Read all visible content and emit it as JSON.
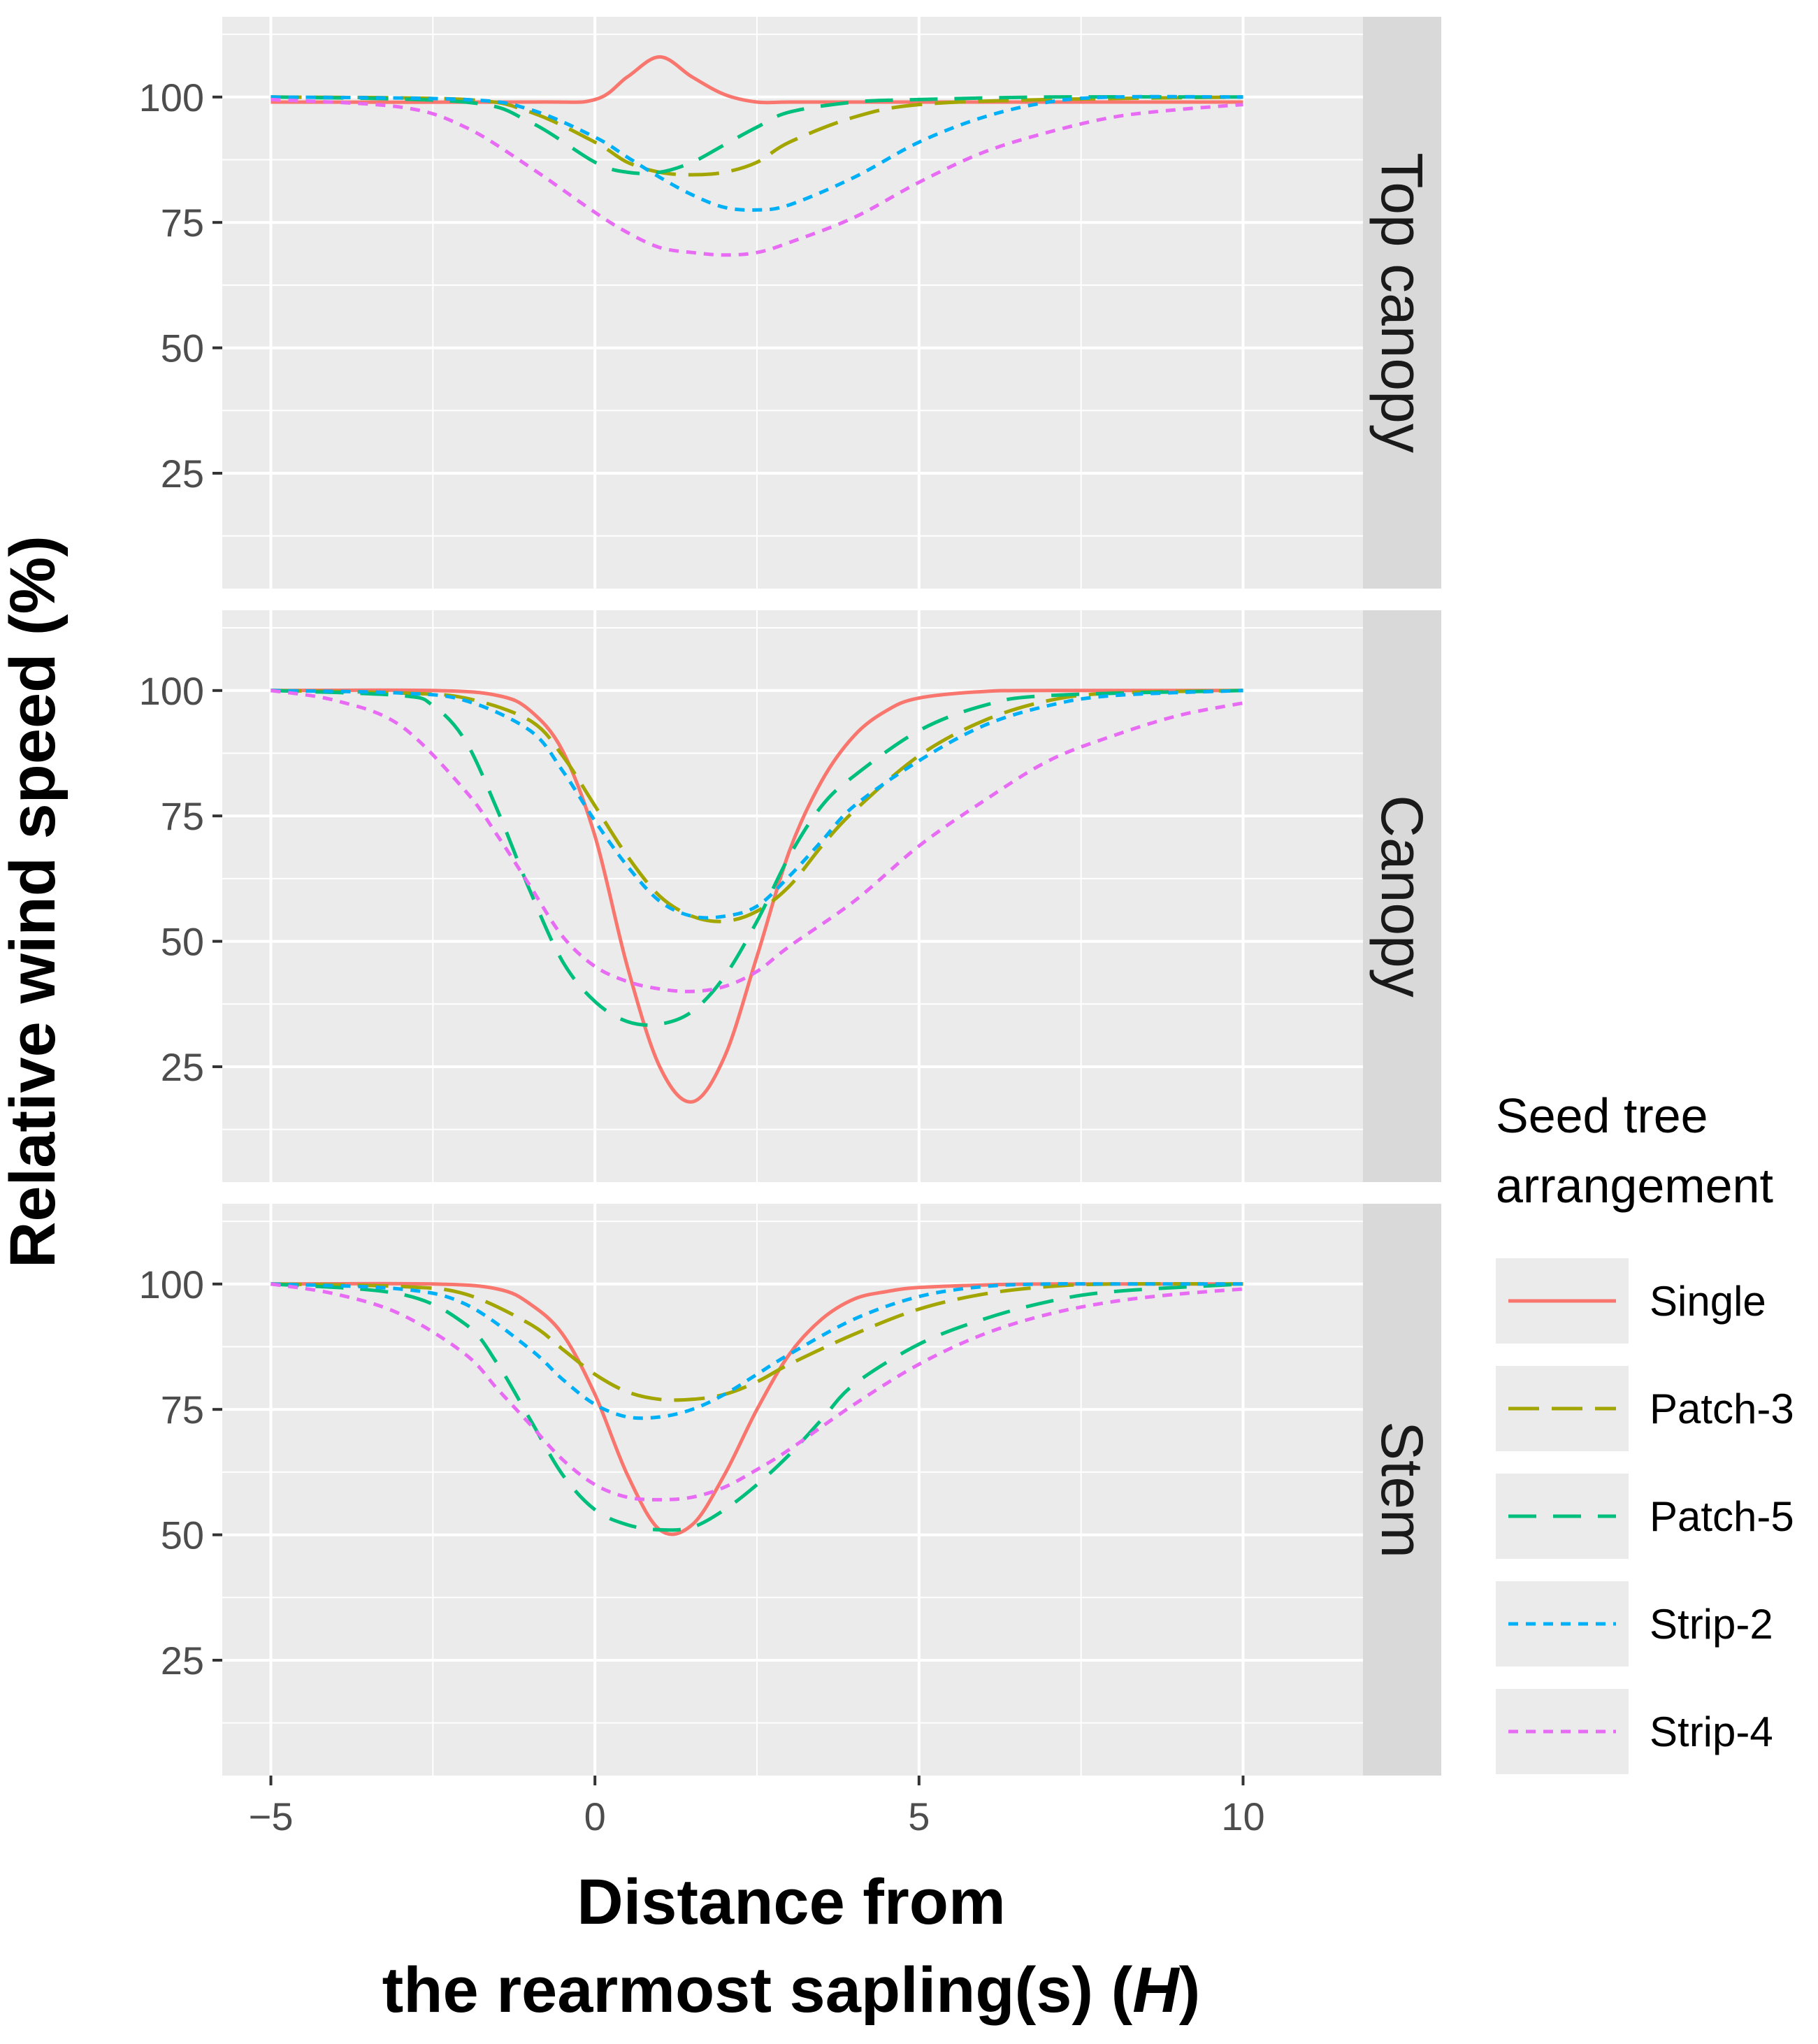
{
  "chart_data": {
    "type": "line",
    "xlabel_line1": "Distance from",
    "xlabel_line2_pre": "the rearmost sapling(s) (",
    "xlabel_line2_italic": "H",
    "xlabel_line2_post": ")",
    "ylabel": "Relative wind speed (%)",
    "xlim": [
      -5.75,
      11.85
    ],
    "ylim": [
      2,
      116
    ],
    "x_ticks": [
      -5,
      0,
      5,
      10
    ],
    "x_tick_labels": [
      "−5",
      "0",
      "5",
      "10"
    ],
    "y_ticks": [
      25,
      50,
      75,
      100
    ],
    "y_tick_labels": [
      "25",
      "50",
      "75",
      "100"
    ],
    "grid": true,
    "legend": {
      "title_line1": "Seed tree",
      "title_line2": "arrangement",
      "position": "right"
    },
    "series_styles": [
      {
        "name": "Single",
        "color": "#F8766D",
        "dash": "solid"
      },
      {
        "name": "Patch-3",
        "color": "#A3A500",
        "dash": "longdash"
      },
      {
        "name": "Patch-5",
        "color": "#00BF7D",
        "dash": "dashed"
      },
      {
        "name": "Strip-2",
        "color": "#00B0F6",
        "dash": "dotted"
      },
      {
        "name": "Strip-4",
        "color": "#E76BF3",
        "dash": "dotted"
      }
    ],
    "panels": [
      {
        "label": "Top canopy",
        "series": [
          {
            "name": "Single",
            "x": [
              -5,
              -1,
              0,
              0.5,
              1,
              1.5,
              2,
              2.5,
              3,
              4,
              6,
              10
            ],
            "y": [
              99,
              99,
              99.5,
              104,
              108,
              104,
              100.5,
              99,
              99,
              99,
              99,
              99
            ]
          },
          {
            "name": "Patch-3",
            "x": [
              -5,
              -2,
              -1,
              0,
              0.5,
              1,
              1.5,
              2,
              2.5,
              3,
              4,
              5,
              7,
              10
            ],
            "y": [
              100,
              99.5,
              97,
              91,
              87,
              85,
              84.5,
              85,
              87,
              91,
              96,
              98.5,
              99.5,
              100
            ]
          },
          {
            "name": "Patch-5",
            "x": [
              -5,
              -2,
              -1,
              0,
              0.5,
              1,
              1.5,
              2,
              2.5,
              3,
              4,
              5,
              7,
              10
            ],
            "y": [
              100,
              99,
              95,
              87,
              85,
              85,
              87,
              90.5,
              94,
              97,
              99,
              99.5,
              100,
              100
            ]
          },
          {
            "name": "Strip-2",
            "x": [
              -5,
              -2,
              -1,
              0,
              0.5,
              1,
              1.5,
              2,
              2.5,
              3,
              4,
              5,
              6,
              7,
              8,
              10
            ],
            "y": [
              100,
              99.5,
              97.5,
              92,
              88,
              84,
              80.5,
              78,
              77.5,
              78.5,
              84,
              91,
              96,
              99,
              100,
              100
            ]
          },
          {
            "name": "Strip-4",
            "x": [
              -5,
              -3,
              -2,
              -1,
              0,
              0.5,
              1,
              1.5,
              2,
              2.5,
              3,
              4,
              5,
              6,
              7,
              8,
              9,
              10
            ],
            "y": [
              99.5,
              98,
              94,
              86,
              77,
              73,
              70,
              69,
              68.5,
              69,
              71,
              76,
              83,
              89,
              93,
              96,
              97.5,
              98.5
            ]
          }
        ]
      },
      {
        "label": "Canopy",
        "series": [
          {
            "name": "Single",
            "x": [
              -5,
              -2.5,
              -1.5,
              -1,
              -0.5,
              0,
              0.5,
              1,
              1.5,
              2,
              2.5,
              3,
              3.5,
              4,
              4.5,
              5,
              6,
              7,
              10
            ],
            "y": [
              100,
              100,
              99,
              96,
              88,
              71,
              45,
              25,
              18,
              27,
              47,
              68,
              82,
              91,
              96,
              98.5,
              99.8,
              100,
              100
            ]
          },
          {
            "name": "Patch-3",
            "x": [
              -5,
              -3,
              -2,
              -1,
              -0.5,
              0,
              0.5,
              1,
              1.5,
              2,
              2.5,
              3,
              3.5,
              4,
              5,
              6,
              7,
              8,
              10
            ],
            "y": [
              100,
              99.5,
              98.5,
              94,
              87,
              77,
              67,
              59,
              55,
              54,
              56,
              61,
              69,
              76,
              87,
              94,
              98,
              99.5,
              100
            ]
          },
          {
            "name": "Patch-5",
            "x": [
              -5,
              -3,
              -2.5,
              -2,
              -1.5,
              -1,
              -0.5,
              0,
              0.5,
              1,
              1.5,
              2,
              2.5,
              3,
              3.5,
              4,
              5,
              6,
              7,
              10
            ],
            "y": [
              100,
              99,
              97,
              90,
              76,
              60,
              46,
              38,
              34,
              33.5,
              36,
              43,
              54,
              67,
              77,
              83,
              92,
              97,
              99,
              100
            ]
          },
          {
            "name": "Strip-2",
            "x": [
              -5,
              -3,
              -2,
              -1,
              -0.5,
              0,
              0.5,
              1,
              1.5,
              2,
              2.5,
              3,
              3.5,
              4,
              5,
              6,
              7,
              8,
              10
            ],
            "y": [
              100,
              99.5,
              98,
              92,
              84,
              74,
              65,
              58,
              55,
              55,
              57,
              63,
              70,
              77,
              86,
              93,
              97,
              99,
              100
            ]
          },
          {
            "name": "Strip-4",
            "x": [
              -5,
              -4,
              -3,
              -2,
              -1.5,
              -1,
              -0.5,
              0,
              0.5,
              1,
              1.5,
              2,
              2.5,
              3,
              4,
              5,
              6,
              7,
              8,
              9,
              10
            ],
            "y": [
              100,
              98,
              93,
              80,
              71,
              61,
              51,
              45,
              42,
              40.5,
              40,
              41,
              44,
              49,
              58,
              69,
              78,
              86,
              91,
              95,
              97.5
            ]
          }
        ]
      },
      {
        "label": "Stem",
        "series": [
          {
            "name": "Single",
            "x": [
              -5,
              -2.5,
              -1.5,
              -1,
              -0.5,
              0,
              0.5,
              1,
              1.5,
              2,
              2.5,
              3,
              3.5,
              4,
              4.5,
              5,
              6,
              7,
              10
            ],
            "y": [
              100,
              100,
              99,
              96,
              90,
              78,
              62,
              51,
              52,
              62,
              75,
              86,
              93,
              97,
              98.5,
              99.3,
              99.8,
              100,
              100
            ]
          },
          {
            "name": "Patch-3",
            "x": [
              -5,
              -3,
              -2,
              -1,
              -0.5,
              0,
              0.5,
              1,
              1.5,
              2,
              2.5,
              3,
              4,
              5,
              6,
              7,
              8,
              10
            ],
            "y": [
              100,
              99.5,
              98,
              92,
              87,
              82,
              78.5,
              77,
              77,
              78,
              80.5,
              84,
              90,
              95,
              98,
              99.5,
              100,
              100
            ]
          },
          {
            "name": "Patch-5",
            "x": [
              -5,
              -3,
              -2,
              -1.5,
              -1,
              -0.5,
              0,
              0.5,
              1,
              1.5,
              2,
              2.5,
              3,
              3.5,
              4,
              5,
              6,
              7,
              8,
              10
            ],
            "y": [
              100,
              98,
              92,
              84,
              73,
              62,
              55,
              52,
              51,
              51.5,
              55,
              60,
              66,
              73,
              80,
              88,
              93,
              96.5,
              98.5,
              100
            ]
          },
          {
            "name": "Strip-2",
            "x": [
              -5,
              -3,
              -2,
              -1,
              -0.5,
              0,
              0.5,
              1,
              1.5,
              2,
              2.5,
              3,
              4,
              5,
              6,
              7,
              8,
              10
            ],
            "y": [
              100,
              99,
              96,
              87,
              81,
              76,
              73.5,
              73.5,
              75,
              78,
              82,
              86,
              93,
              97.5,
              99.5,
              100,
              100,
              100
            ]
          },
          {
            "name": "Strip-4",
            "x": [
              -5,
              -4,
              -3,
              -2,
              -1.5,
              -1,
              -0.5,
              0,
              0.5,
              1,
              1.5,
              2,
              2.5,
              3,
              4,
              5,
              6,
              7,
              8,
              9,
              10
            ],
            "y": [
              100,
              98,
              94,
              86,
              79,
              72,
              65,
              60,
              57.5,
              57,
              57.5,
              59.5,
              63,
              67,
              76,
              84,
              90,
              94,
              96.5,
              98,
              99
            ]
          }
        ]
      }
    ]
  }
}
